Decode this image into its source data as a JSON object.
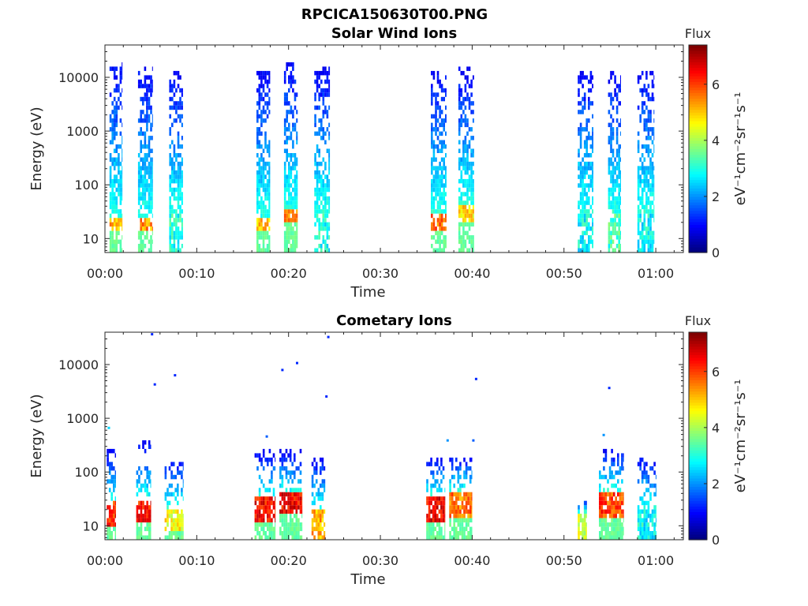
{
  "figure": {
    "title": "RPCICA150630T00.PNG"
  },
  "colormap": "jet",
  "chart_data": [
    {
      "type": "heatmap",
      "title": "Solar Wind Ions",
      "xlabel": "Time",
      "ylabel": "Energy (eV)",
      "y_scale": "log",
      "y_range_ev": [
        5.5,
        40000
      ],
      "x_range_min": [
        0,
        63
      ],
      "x_ticks": [
        "00:00",
        "00:10",
        "00:20",
        "00:30",
        "00:40",
        "00:50",
        "01:00"
      ],
      "x_tick_values_min": [
        0,
        10,
        20,
        30,
        40,
        50,
        60
      ],
      "y_ticks": [
        "10",
        "100",
        "1000",
        "10000"
      ],
      "y_tick_values_ev": [
        10,
        100,
        1000,
        10000
      ],
      "colorbar": {
        "title": "Flux",
        "label": "eV⁻¹cm⁻²sr⁻¹s⁻¹",
        "range": [
          0,
          7.4
        ],
        "ticks": [
          "0",
          "2",
          "4",
          "6"
        ],
        "tick_values": [
          0,
          2,
          4,
          6
        ]
      },
      "bursts": [
        {
          "t_min": 0.5,
          "t_max": 1.9,
          "e_min_ev": 6,
          "e_max_ev": 20000,
          "peak_flux": 5.8,
          "peak_low_ev": 15,
          "peak_high_ev": 25
        },
        {
          "t_min": 3.6,
          "t_max": 5.2,
          "e_min_ev": 6,
          "e_max_ev": 15000,
          "peak_flux": 6.0,
          "peak_low_ev": 15,
          "peak_high_ev": 25
        },
        {
          "t_min": 7.0,
          "t_max": 8.5,
          "e_min_ev": 6,
          "e_max_ev": 12000,
          "peak_flux": 3.6,
          "peak_low_ev": 6,
          "peak_high_ev": 30
        },
        {
          "t_min": 16.5,
          "t_max": 18.0,
          "e_min_ev": 6,
          "e_max_ev": 14000,
          "peak_flux": 5.6,
          "peak_low_ev": 15,
          "peak_high_ev": 25
        },
        {
          "t_min": 19.5,
          "t_max": 21.0,
          "e_min_ev": 6,
          "e_max_ev": 20000,
          "peak_flux": 6.2,
          "peak_low_ev": 20,
          "peak_high_ev": 35
        },
        {
          "t_min": 22.8,
          "t_max": 24.5,
          "e_min_ev": 6,
          "e_max_ev": 15000,
          "peak_flux": 3.5,
          "peak_low_ev": 6,
          "peak_high_ev": 30
        },
        {
          "t_min": 35.5,
          "t_max": 37.2,
          "e_min_ev": 6,
          "e_max_ev": 14000,
          "peak_flux": 6.3,
          "peak_low_ev": 15,
          "peak_high_ev": 30
        },
        {
          "t_min": 38.5,
          "t_max": 40.2,
          "e_min_ev": 6,
          "e_max_ev": 15000,
          "peak_flux": 5.4,
          "peak_low_ev": 20,
          "peak_high_ev": 40
        },
        {
          "t_min": 51.5,
          "t_max": 53.2,
          "e_min_ev": 6,
          "e_max_ev": 14000,
          "peak_flux": 3.4,
          "peak_low_ev": 6,
          "peak_high_ev": 30
        },
        {
          "t_min": 54.8,
          "t_max": 56.2,
          "e_min_ev": 6,
          "e_max_ev": 12000,
          "peak_flux": 3.8,
          "peak_low_ev": 6,
          "peak_high_ev": 30
        },
        {
          "t_min": 58.0,
          "t_max": 59.8,
          "e_min_ev": 6,
          "e_max_ev": 14000,
          "peak_flux": 3.4,
          "peak_low_ev": 6,
          "peak_high_ev": 30
        }
      ]
    },
    {
      "type": "heatmap",
      "title": "Cometary Ions",
      "xlabel": "Time",
      "ylabel": "Energy (eV)",
      "y_scale": "log",
      "y_range_ev": [
        5.5,
        40000
      ],
      "x_range_min": [
        0,
        63
      ],
      "x_ticks": [
        "00:00",
        "00:10",
        "00:20",
        "00:30",
        "00:40",
        "00:50",
        "01:00"
      ],
      "x_tick_values_min": [
        0,
        10,
        20,
        30,
        40,
        50,
        60
      ],
      "y_ticks": [
        "10",
        "100",
        "1000",
        "10000"
      ],
      "y_tick_values_ev": [
        10,
        100,
        1000,
        10000
      ],
      "colorbar": {
        "title": "Flux",
        "label": "eV⁻¹cm⁻²sr⁻¹s⁻¹",
        "range": [
          0,
          7.4
        ],
        "ticks": [
          "0",
          "2",
          "4",
          "6"
        ],
        "tick_values": [
          0,
          2,
          4,
          6
        ]
      },
      "bursts": [
        {
          "t_min": 0.2,
          "t_max": 1.2,
          "e_min_ev": 6,
          "e_max_ev": 250,
          "peak_flux": 6.8,
          "peak_low_ev": 10,
          "peak_high_ev": 28
        },
        {
          "t_min": 3.4,
          "t_max": 5.0,
          "e_min_ev": 6,
          "e_max_ev": 400,
          "peak_flux": 7.0,
          "peak_low_ev": 12,
          "peak_high_ev": 30
        },
        {
          "t_min": 6.5,
          "t_max": 8.5,
          "e_min_ev": 6,
          "e_max_ev": 200,
          "peak_flux": 5.2,
          "peak_low_ev": 8,
          "peak_high_ev": 22
        },
        {
          "t_min": 16.3,
          "t_max": 18.5,
          "e_min_ev": 6,
          "e_max_ev": 250,
          "peak_flux": 7.0,
          "peak_low_ev": 12,
          "peak_high_ev": 35
        },
        {
          "t_min": 19.0,
          "t_max": 21.5,
          "e_min_ev": 6,
          "e_max_ev": 250,
          "peak_flux": 7.1,
          "peak_low_ev": 18,
          "peak_high_ev": 40
        },
        {
          "t_min": 22.5,
          "t_max": 24.0,
          "e_min_ev": 6,
          "e_max_ev": 200,
          "peak_flux": 5.8,
          "peak_low_ev": 6,
          "peak_high_ev": 20
        },
        {
          "t_min": 35.0,
          "t_max": 37.0,
          "e_min_ev": 6,
          "e_max_ev": 180,
          "peak_flux": 7.2,
          "peak_low_ev": 12,
          "peak_high_ev": 35
        },
        {
          "t_min": 37.5,
          "t_max": 40.0,
          "e_min_ev": 6,
          "e_max_ev": 200,
          "peak_flux": 6.2,
          "peak_low_ev": 15,
          "peak_high_ev": 45
        },
        {
          "t_min": 51.5,
          "t_max": 52.5,
          "e_min_ev": 6,
          "e_max_ev": 30,
          "peak_flux": 5.0,
          "peak_low_ev": 6,
          "peak_high_ev": 18
        },
        {
          "t_min": 53.8,
          "t_max": 56.5,
          "e_min_ev": 6,
          "e_max_ev": 250,
          "peak_flux": 6.6,
          "peak_low_ev": 15,
          "peak_high_ev": 45
        },
        {
          "t_min": 58.0,
          "t_max": 60.0,
          "e_min_ev": 6,
          "e_max_ev": 200,
          "peak_flux": 3.4,
          "peak_low_ev": 6,
          "peak_high_ev": 20
        }
      ],
      "isolated_points": [
        {
          "t_min": 0.3,
          "e_ev": 650,
          "flux": 2.5
        },
        {
          "t_min": 5.0,
          "e_ev": 36000,
          "flux": 1.2
        },
        {
          "t_min": 5.3,
          "e_ev": 4200,
          "flux": 1.2
        },
        {
          "t_min": 7.5,
          "e_ev": 6200,
          "flux": 1.2
        },
        {
          "t_min": 17.5,
          "e_ev": 450,
          "flux": 1.6
        },
        {
          "t_min": 19.2,
          "e_ev": 7800,
          "flux": 1.2
        },
        {
          "t_min": 20.8,
          "e_ev": 10500,
          "flux": 1.2
        },
        {
          "t_min": 24.2,
          "e_ev": 32000,
          "flux": 1.2
        },
        {
          "t_min": 24.0,
          "e_ev": 2500,
          "flux": 1.2
        },
        {
          "t_min": 37.2,
          "e_ev": 380,
          "flux": 2.0
        },
        {
          "t_min": 40.0,
          "e_ev": 380,
          "flux": 1.6
        },
        {
          "t_min": 40.3,
          "e_ev": 5300,
          "flux": 1.2
        },
        {
          "t_min": 54.2,
          "e_ev": 480,
          "flux": 2.0
        },
        {
          "t_min": 54.8,
          "e_ev": 3600,
          "flux": 1.2
        }
      ]
    }
  ]
}
